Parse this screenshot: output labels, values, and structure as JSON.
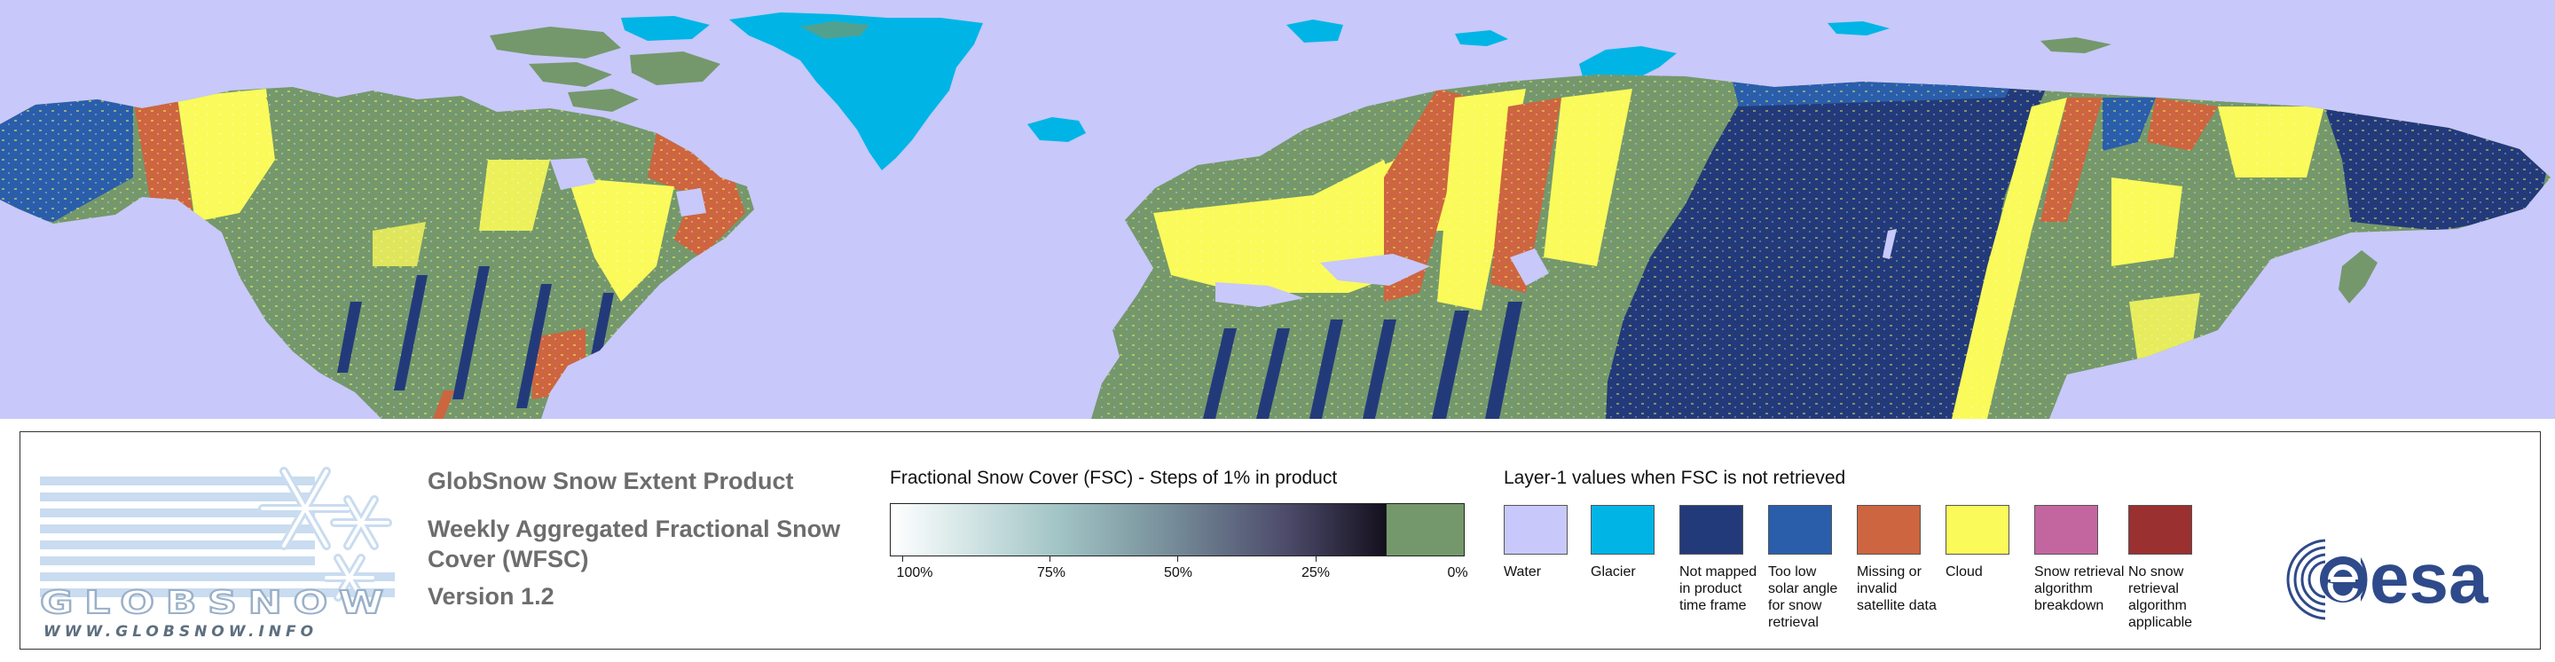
{
  "colors": {
    "ocean": "#c8c8fa",
    "snow_free": "#74986c",
    "glacier": "#00b5e6",
    "not_mapped": "#233a7a",
    "low_sun": "#2a5eaa",
    "missing": "#cd6540",
    "cloud": "#fafa5a",
    "breakdown": "#c366a0",
    "not_applicable": "#9a3030"
  },
  "logo": {
    "wordmark": "GLOBSNOW",
    "url": "WWW.GLOBSNOW.INFO"
  },
  "product": {
    "title": "GlobSnow Snow Extent Product",
    "subtitle": "Weekly Aggregated Fractional Snow Cover (WFSC)",
    "version": "Version 1.2"
  },
  "fsc_scale": {
    "title": "Fractional Snow Cover (FSC) - Steps of 1% in product",
    "ticks": [
      "100%",
      "75%",
      "50%",
      "25%",
      "0%"
    ]
  },
  "layer1": {
    "title": "Layer-1 values when FSC is not retrieved",
    "items": [
      {
        "label": "Water",
        "color": "#c8c8fa"
      },
      {
        "label": "Glacier",
        "color": "#00b5e6"
      },
      {
        "label": "Not mapped in product time frame",
        "color": "#233a7a"
      },
      {
        "label": "Too low solar angle for snow retrieval",
        "color": "#2a5eaa"
      },
      {
        "label": "Missing or invalid satellite data",
        "color": "#cd6540"
      },
      {
        "label": "Cloud",
        "color": "#fafa5a"
      },
      {
        "label": "Snow retrieval algorithm breakdown",
        "color": "#c366a0"
      },
      {
        "label": "No snow retrieval algorithm applicable",
        "color": "#9a3030"
      }
    ]
  },
  "esa_logo": {
    "text": "esa"
  }
}
